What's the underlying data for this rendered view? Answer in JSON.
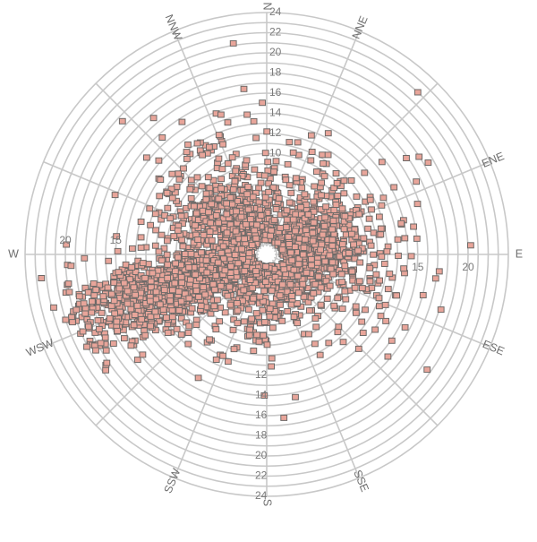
{
  "chart_data": {
    "type": "scatter",
    "projection": "polar",
    "angular_axis": {
      "direction_labels": [
        "N",
        "NNE",
        "ENE",
        "E",
        "ESE",
        "SSE",
        "S",
        "SSW",
        "WSW",
        "W",
        "NNW"
      ]
    },
    "radial_axis": {
      "range": [
        0,
        24
      ],
      "tick_labels_n": [
        "10",
        "12",
        "14",
        "16",
        "18",
        "20",
        "22",
        "24"
      ],
      "tick_labels_s": [
        "12",
        "14",
        "16",
        "18",
        "20",
        "22",
        "24"
      ],
      "tick_labels_e": [
        "15",
        "20"
      ],
      "tick_labels_w": [
        "15",
        "20"
      ]
    },
    "grid": true,
    "legend": "none",
    "colors": {
      "marker_fill": "#e8a59a",
      "marker_edge": "#6e6a68",
      "grid": "#c8c8c8",
      "dense_core": "#6e6a68"
    },
    "series": [
      {
        "points_dense_estimated_count": 3000,
        "points_outliers": [
          {
            "dir_deg": 351,
            "r": 21.2
          },
          {
            "dir_deg": 43,
            "r": 22.0
          },
          {
            "dir_deg": 264,
            "r": 22.5
          },
          {
            "dir_deg": 256,
            "r": 21.8
          },
          {
            "dir_deg": 252,
            "r": 21.0
          },
          {
            "dir_deg": 255,
            "r": 18.8
          },
          {
            "dir_deg": 209,
            "r": 14.0
          },
          {
            "dir_deg": 174,
            "r": 16.3
          },
          {
            "dir_deg": 181,
            "r": 14.0
          },
          {
            "dir_deg": 84,
            "r": 15.0
          },
          {
            "dir_deg": 77,
            "r": 13.7
          },
          {
            "dir_deg": 103,
            "r": 11.5
          },
          {
            "dir_deg": 328,
            "r": 13.0
          },
          {
            "dir_deg": 311,
            "r": 14.2
          },
          {
            "dir_deg": 352,
            "r": 14.0
          },
          {
            "dir_deg": 225,
            "r": 11.0
          },
          {
            "dir_deg": 152,
            "r": 11.3
          }
        ]
      }
    ]
  }
}
